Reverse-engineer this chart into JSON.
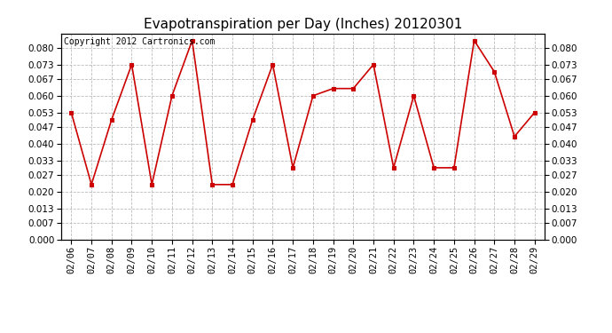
{
  "title": "Evapotranspiration per Day (Inches) 20120301",
  "copyright_text": "Copyright 2012 Cartronics.com",
  "dates": [
    "02/06",
    "02/07",
    "02/08",
    "02/09",
    "02/10",
    "02/11",
    "02/12",
    "02/13",
    "02/14",
    "02/15",
    "02/16",
    "02/17",
    "02/18",
    "02/19",
    "02/20",
    "02/21",
    "02/22",
    "02/23",
    "02/24",
    "02/25",
    "02/26",
    "02/27",
    "02/28",
    "02/29"
  ],
  "values": [
    0.053,
    0.023,
    0.05,
    0.073,
    0.023,
    0.06,
    0.083,
    0.023,
    0.023,
    0.05,
    0.073,
    0.03,
    0.06,
    0.063,
    0.063,
    0.073,
    0.03,
    0.06,
    0.03,
    0.03,
    0.083,
    0.07,
    0.043,
    0.053
  ],
  "yticks": [
    0.0,
    0.007,
    0.013,
    0.02,
    0.027,
    0.033,
    0.04,
    0.047,
    0.053,
    0.06,
    0.067,
    0.073,
    0.08
  ],
  "ylim": [
    0.0,
    0.086
  ],
  "line_color": "#cc0000",
  "marker": "s",
  "marker_size": 3,
  "marker_color": "#cc0000",
  "grid_color": "#bbbbbb",
  "background_color": "#ffffff",
  "title_fontsize": 11,
  "copyright_fontsize": 7,
  "tick_fontsize": 7.5,
  "fig_width": 6.9,
  "fig_height": 3.75,
  "dpi": 100
}
